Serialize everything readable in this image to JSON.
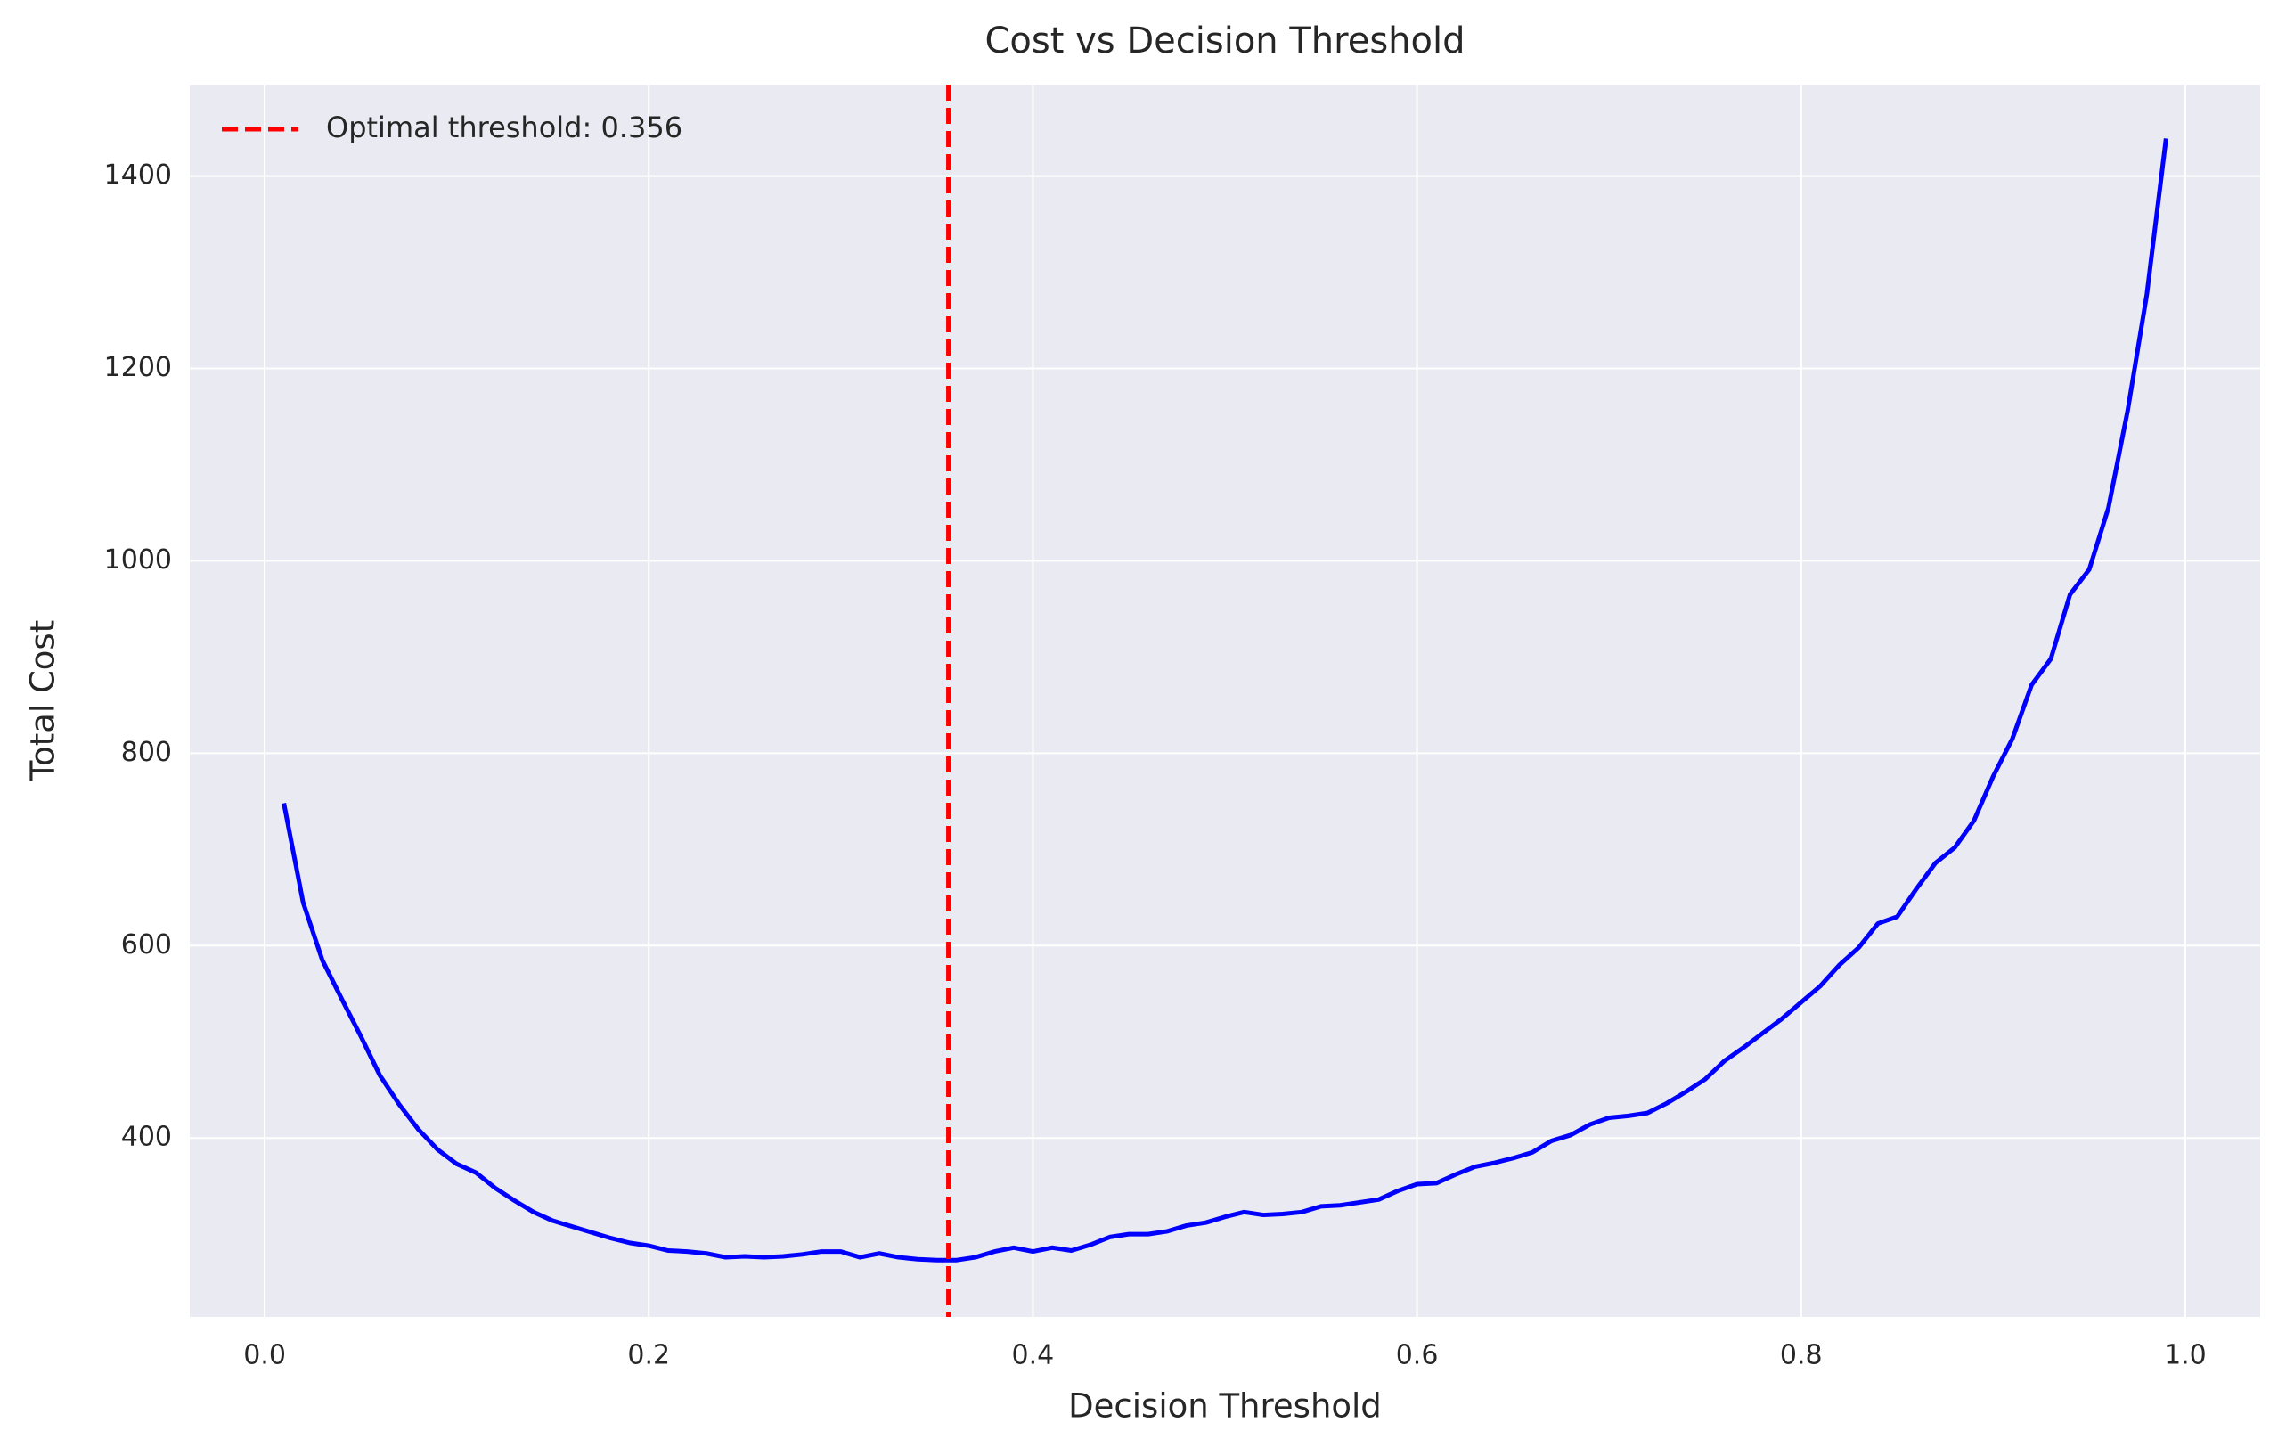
{
  "chart_data": {
    "type": "line",
    "title": "Cost vs Decision Threshold",
    "x_label": "Decision Threshold",
    "y_label": "Total Cost",
    "x": [
      0.01,
      0.02,
      0.03,
      0.04,
      0.05,
      0.06,
      0.07,
      0.08,
      0.09,
      0.1,
      0.11,
      0.12,
      0.13,
      0.14,
      0.15,
      0.16,
      0.17,
      0.18,
      0.19,
      0.2,
      0.21,
      0.22,
      0.23,
      0.24,
      0.25,
      0.26,
      0.27,
      0.28,
      0.29,
      0.3,
      0.31,
      0.32,
      0.33,
      0.34,
      0.35,
      0.36,
      0.37,
      0.38,
      0.39,
      0.4,
      0.41,
      0.42,
      0.43,
      0.44,
      0.45,
      0.46,
      0.47,
      0.48,
      0.49,
      0.5,
      0.51,
      0.52,
      0.53,
      0.54,
      0.55,
      0.56,
      0.57,
      0.58,
      0.59,
      0.6,
      0.61,
      0.62,
      0.63,
      0.64,
      0.65,
      0.66,
      0.67,
      0.68,
      0.69,
      0.7,
      0.71,
      0.72,
      0.73,
      0.74,
      0.75,
      0.76,
      0.77,
      0.78,
      0.79,
      0.8,
      0.81,
      0.82,
      0.83,
      0.84,
      0.85,
      0.86,
      0.87,
      0.88,
      0.89,
      0.9,
      0.91,
      0.92,
      0.93,
      0.94,
      0.95,
      0.96,
      0.97,
      0.98,
      0.99
    ],
    "series": [
      {
        "color": "#0000ff",
        "values": [
          748,
          645,
          585,
          545,
          506,
          465,
          435,
          409,
          388,
          373,
          364,
          348,
          335,
          323,
          314,
          308,
          302,
          296,
          291,
          288,
          283,
          282,
          280,
          276,
          277,
          276,
          277,
          279,
          282,
          282,
          276,
          280,
          276,
          274,
          273,
          273,
          276,
          282,
          286,
          282,
          286,
          283,
          289,
          297,
          300,
          300,
          303,
          309,
          312,
          318,
          323,
          320,
          321,
          323,
          329,
          330,
          333,
          336,
          345,
          352,
          353,
          362,
          370,
          374,
          379,
          385,
          397,
          403,
          414,
          421,
          423,
          426,
          436,
          448,
          461,
          480,
          494,
          509,
          524,
          541,
          558,
          580,
          598,
          623,
          630,
          659,
          686,
          702,
          730,
          776,
          815,
          871,
          898,
          965,
          991,
          1055,
          1156,
          1277,
          1439
        ]
      }
    ],
    "threshold": 0.356,
    "threshold_label": "Optimal threshold: 0.356",
    "threshold_color": "#ff0000",
    "xlim": [
      -0.039,
      1.039
    ],
    "ylim": [
      214,
      1495
    ],
    "xticks": [
      {
        "value": 0,
        "label": "0.0"
      },
      0.2,
      0.4,
      0.6,
      0.8,
      {
        "value": 1,
        "label": "1.0"
      }
    ],
    "yticks": [
      400,
      600,
      800,
      1000,
      1200,
      1400
    ],
    "grid": true,
    "legend": "upper left"
  }
}
